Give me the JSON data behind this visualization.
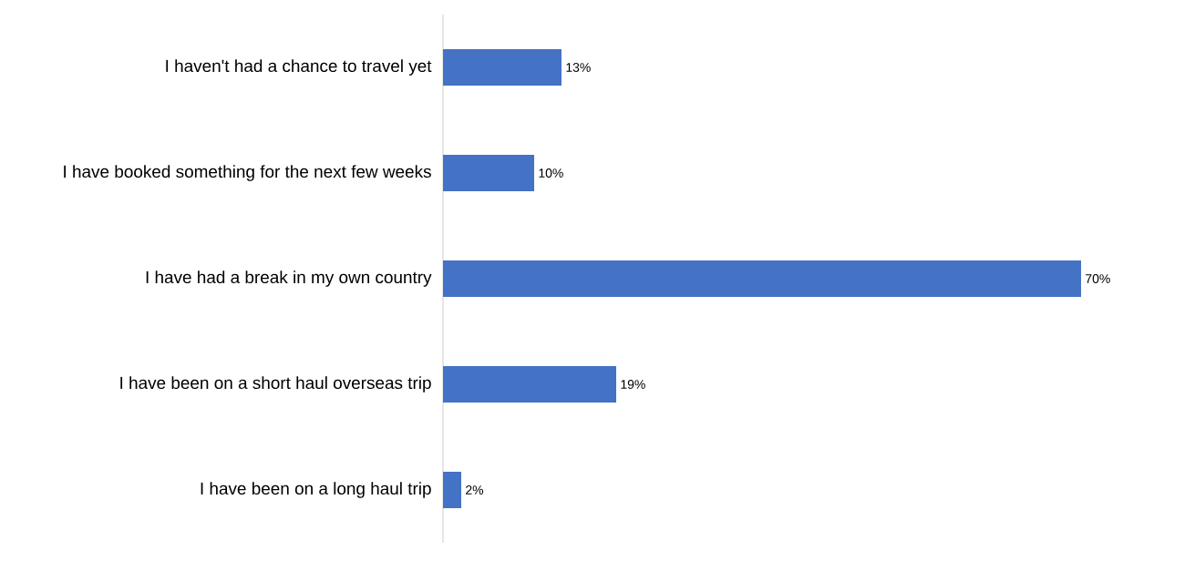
{
  "chart_data": {
    "type": "bar",
    "orientation": "horizontal",
    "categories": [
      "I haven't had a chance to travel yet",
      "I have booked something for the next few weeks",
      "I have had a break in my own country",
      "I have been on a short haul overseas trip",
      "I have been on a long haul trip"
    ],
    "values": [
      13,
      10,
      70,
      19,
      2
    ],
    "value_labels": [
      "13%",
      "10%",
      "70%",
      "19%",
      "2%"
    ],
    "color": "#4472c4",
    "tick_labels": "y"
  }
}
